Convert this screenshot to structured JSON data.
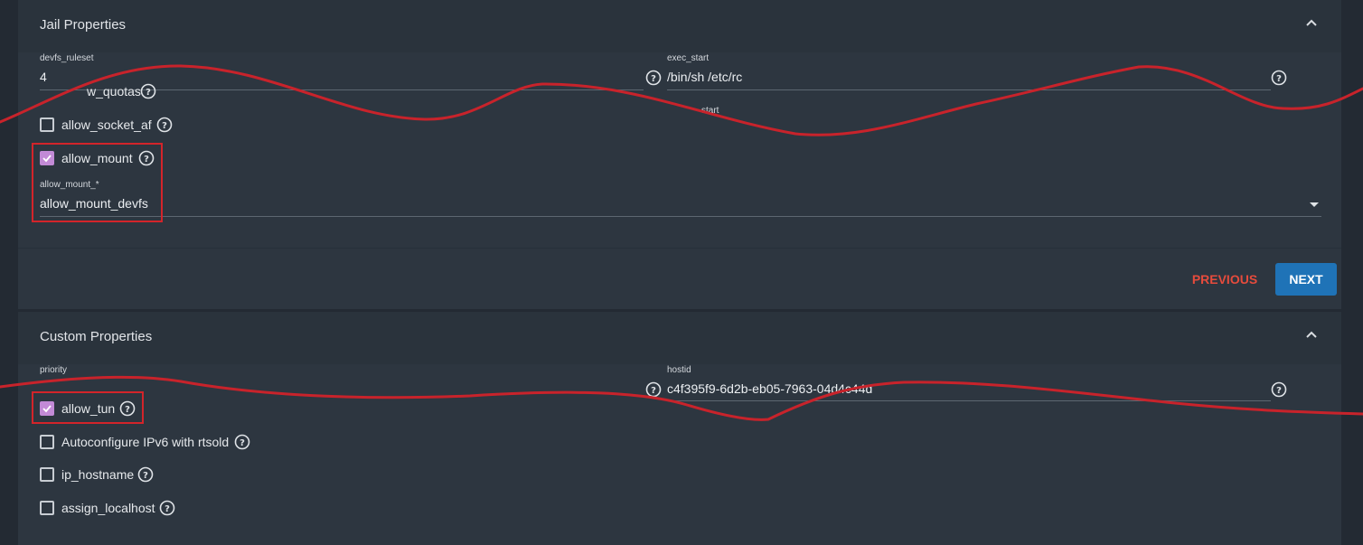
{
  "jail_properties": {
    "title": "Jail Properties",
    "devfs_ruleset": {
      "label": "devfs_ruleset",
      "value": "4"
    },
    "exec_start": {
      "label": "exec_start",
      "value": "/bin/sh /etc/rc"
    },
    "obscured_checkbox": {
      "label": "w_quotas"
    },
    "obscured_label": "start",
    "allow_socket_af": {
      "label": "allow_socket_af"
    },
    "allow_mount": {
      "label": "allow_mount"
    },
    "allow_mount_select": {
      "label": "allow_mount_*",
      "value": "allow_mount_devfs"
    }
  },
  "actions": {
    "previous": "PREVIOUS",
    "next": "NEXT"
  },
  "custom_properties": {
    "title": "Custom Properties",
    "priority": {
      "label": "priority",
      "value": ""
    },
    "hostid": {
      "label": "hostid",
      "value": "c4f395f9-6d2b-eb05-7963-04d4c44d"
    },
    "checkboxes": [
      {
        "label": "allow_tun"
      },
      {
        "label": "Autoconfigure IPv6 with rtsold"
      },
      {
        "label": "ip_hostname"
      },
      {
        "label": "assign_localhost"
      }
    ]
  },
  "colors": {
    "accent": "#1f73b7",
    "checkbox": "#c28ad6",
    "warn": "#e64b3c",
    "annotation": "#d3242a"
  }
}
